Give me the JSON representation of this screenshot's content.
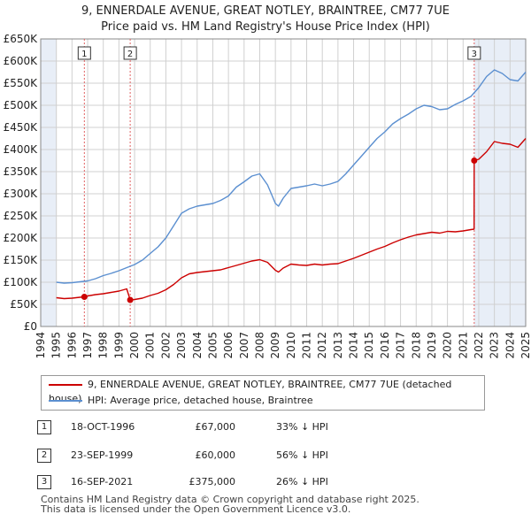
{
  "title": {
    "line1": "9, ENNERDALE AVENUE, GREAT NOTLEY, BRAINTREE, CM77 7UE",
    "line2": "Price paid vs. HM Land Registry's House Price Index (HPI)"
  },
  "colors": {
    "property": "#cc0000",
    "hpi": "#5b8fd0",
    "shade": "#e8eef7",
    "grid": "#d0d0d0",
    "marker_line": "#e06060"
  },
  "chart_data": {
    "type": "line",
    "title": "Price paid vs. HM Land Registry's House Price Index (HPI)",
    "xlabel": "",
    "ylabel": "",
    "xlim": [
      1994,
      2025
    ],
    "ylim": [
      0,
      650000
    ],
    "y_ticks": [
      0,
      50000,
      100000,
      150000,
      200000,
      250000,
      300000,
      350000,
      400000,
      450000,
      500000,
      550000,
      600000,
      650000
    ],
    "y_tick_labels": [
      "£0",
      "£50K",
      "£100K",
      "£150K",
      "£200K",
      "£250K",
      "£300K",
      "£350K",
      "£400K",
      "£450K",
      "£500K",
      "£550K",
      "£600K",
      "£650K"
    ],
    "x_ticks": [
      1994,
      1995,
      1996,
      1997,
      1998,
      1999,
      2000,
      2001,
      2002,
      2003,
      2004,
      2005,
      2006,
      2007,
      2008,
      2009,
      2010,
      2011,
      2012,
      2013,
      2014,
      2015,
      2016,
      2017,
      2018,
      2019,
      2020,
      2021,
      2022,
      2023,
      2024,
      2025
    ],
    "x_tick_labels": [
      "1994",
      "1995",
      "1996",
      "1997",
      "1998",
      "1999",
      "2000",
      "2001",
      "2002",
      "2003",
      "2004",
      "2005",
      "2006",
      "2007",
      "2008",
      "2009",
      "2010",
      "2011",
      "2012",
      "2013",
      "2014",
      "2015",
      "2016",
      "2017",
      "2018",
      "2019",
      "2020",
      "2021",
      "2022",
      "2023",
      "2024",
      "2025"
    ],
    "grid": true,
    "legend_position": "below",
    "series": [
      {
        "name": "9, ENNERDALE AVENUE, GREAT NOTLEY, BRAINTREE, CM77 7UE (detached house)",
        "x": [
          1995.0,
          1995.5,
          1996.0,
          1996.5,
          1996.79,
          1997.0,
          1997.5,
          1998.0,
          1998.5,
          1999.0,
          1999.5,
          1999.72,
          2000.0,
          2000.5,
          2001.0,
          2001.5,
          2002.0,
          2002.5,
          2003.0,
          2003.5,
          2004.0,
          2004.5,
          2005.0,
          2005.5,
          2006.0,
          2006.5,
          2007.0,
          2007.5,
          2008.0,
          2008.5,
          2009.0,
          2009.2,
          2009.5,
          2010.0,
          2010.5,
          2011.0,
          2011.5,
          2012.0,
          2012.5,
          2013.0,
          2013.5,
          2014.0,
          2014.5,
          2015.0,
          2015.5,
          2016.0,
          2016.5,
          2017.0,
          2017.5,
          2018.0,
          2018.5,
          2019.0,
          2019.5,
          2020.0,
          2020.5,
          2021.0,
          2021.5,
          2021.7,
          2021.71,
          2022.0,
          2022.5,
          2023.0,
          2023.5,
          2024.0,
          2024.5,
          2025.0
        ],
        "values": [
          65000,
          63000,
          64000,
          66000,
          67000,
          69000,
          72000,
          74000,
          77000,
          80000,
          85000,
          60000,
          61000,
          64000,
          70000,
          75000,
          83000,
          95000,
          110000,
          119000,
          122000,
          124000,
          126000,
          128000,
          133000,
          138000,
          143000,
          148000,
          151000,
          145000,
          127000,
          123000,
          132000,
          141000,
          139000,
          138000,
          141000,
          139000,
          141000,
          142000,
          148000,
          154000,
          161000,
          168000,
          175000,
          181000,
          189000,
          196000,
          202000,
          207000,
          210000,
          213000,
          211000,
          215000,
          214000,
          216000,
          219000,
          220000,
          375000,
          378000,
          395000,
          418000,
          414000,
          412000,
          405000,
          425000
        ]
      },
      {
        "name": "HPI: Average price, detached house, Braintree",
        "x": [
          1995.0,
          1995.5,
          1996.0,
          1996.5,
          1997.0,
          1997.5,
          1998.0,
          1998.5,
          1999.0,
          1999.5,
          2000.0,
          2000.5,
          2001.0,
          2001.5,
          2002.0,
          2002.5,
          2003.0,
          2003.5,
          2004.0,
          2004.5,
          2005.0,
          2005.5,
          2006.0,
          2006.5,
          2007.0,
          2007.5,
          2008.0,
          2008.5,
          2009.0,
          2009.2,
          2009.5,
          2010.0,
          2010.5,
          2011.0,
          2011.5,
          2012.0,
          2012.5,
          2013.0,
          2013.5,
          2014.0,
          2014.5,
          2015.0,
          2015.5,
          2016.0,
          2016.5,
          2017.0,
          2017.5,
          2018.0,
          2018.5,
          2019.0,
          2019.5,
          2020.0,
          2020.5,
          2021.0,
          2021.5,
          2022.0,
          2022.5,
          2023.0,
          2023.5,
          2024.0,
          2024.5,
          2025.0
        ],
        "values": [
          100000,
          98000,
          99000,
          101000,
          103000,
          108000,
          115000,
          120000,
          126000,
          133000,
          140000,
          150000,
          165000,
          180000,
          200000,
          228000,
          256000,
          266000,
          272000,
          275000,
          278000,
          285000,
          295000,
          315000,
          327000,
          340000,
          345000,
          320000,
          278000,
          272000,
          290000,
          312000,
          315000,
          318000,
          322000,
          318000,
          322000,
          328000,
          345000,
          365000,
          385000,
          405000,
          425000,
          440000,
          458000,
          470000,
          480000,
          492000,
          500000,
          497000,
          490000,
          492000,
          502000,
          510000,
          520000,
          540000,
          565000,
          580000,
          572000,
          558000,
          555000,
          575000
        ]
      }
    ],
    "sales": [
      {
        "label": "1",
        "x": 1996.79,
        "value": 67000
      },
      {
        "label": "2",
        "x": 1999.72,
        "value": 60000
      },
      {
        "label": "3",
        "x": 2021.71,
        "value": 375000
      }
    ]
  },
  "legend": {
    "property_label": "9, ENNERDALE AVENUE, GREAT NOTLEY, BRAINTREE, CM77 7UE (detached house)",
    "hpi_label": "HPI: Average price, detached house, Braintree"
  },
  "sales_table": [
    {
      "num": "1",
      "date": "18-OCT-1996",
      "price": "£67,000",
      "hpi": "33% ↓ HPI"
    },
    {
      "num": "2",
      "date": "23-SEP-1999",
      "price": "£60,000",
      "hpi": "56% ↓ HPI"
    },
    {
      "num": "3",
      "date": "16-SEP-2021",
      "price": "£375,000",
      "hpi": "26% ↓ HPI"
    }
  ],
  "footer": {
    "line1": "Contains HM Land Registry data © Crown copyright and database right 2025.",
    "line2": "This data is licensed under the Open Government Licence v3.0."
  }
}
